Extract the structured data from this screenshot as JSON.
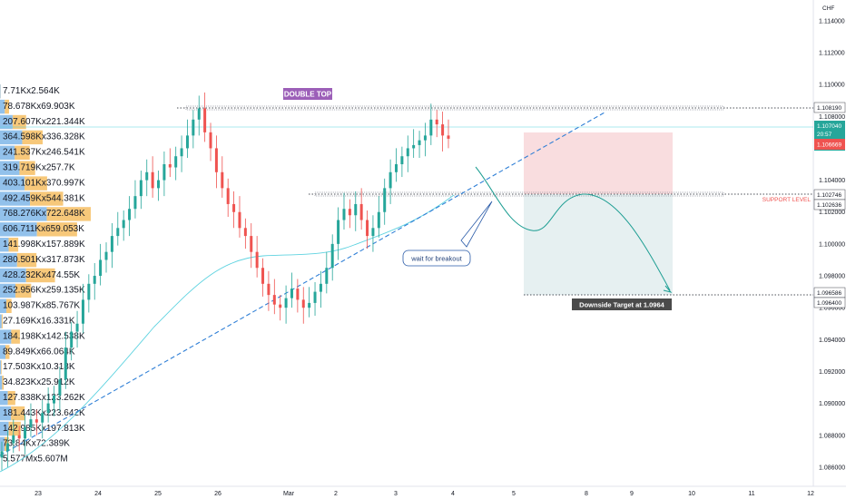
{
  "chart_data": {
    "type": "candlestick",
    "currency": "CHF",
    "y_axis": {
      "ticks": [
        "1.114000",
        "1.112000",
        "1.110000",
        "1.108000",
        "1.106000",
        "1.104000",
        "1.102000",
        "1.100000",
        "1.098000",
        "1.096000",
        "1.094000",
        "1.092000",
        "1.090000",
        "1.088000",
        "1.086000"
      ],
      "ylim": [
        1.0848,
        1.1153
      ]
    },
    "x_axis": {
      "ticks": [
        "23",
        "24",
        "25",
        "26",
        "Mar",
        "2",
        "3",
        "4",
        "5",
        "8",
        "9",
        "10",
        "11",
        "12"
      ]
    },
    "price_labels": {
      "resistance": "1.108190",
      "current": "1.107040",
      "countdown": "20:57",
      "last_red": "1.106669",
      "support_upper": "1.102746",
      "support_lower": "1.102636",
      "target_upper": "1.096586",
      "target_lower": "1.096400"
    },
    "annotations": {
      "double_top": "DOUBLE TOP",
      "support_level": "SUPPORT LEVEL",
      "wait_for_breakout": "wait for breakout",
      "downside_target": "Downside Target at 1.0964"
    },
    "volume_profile": [
      {
        "label": "7.71Kx2.564K",
        "buy": 7.7,
        "sell": 2.6
      },
      {
        "label": "78.678Kx69.903K",
        "buy": 78.7,
        "sell": 69.9
      },
      {
        "label": "207.607Kx221.344K",
        "buy": 207.6,
        "sell": 221.3
      },
      {
        "label": "364.598Kx336.328K",
        "buy": 364.6,
        "sell": 336.3
      },
      {
        "label": "241.537Kx246.541K",
        "buy": 241.5,
        "sell": 246.5
      },
      {
        "label": "319.719Kx257.7K",
        "buy": 319.7,
        "sell": 257.7
      },
      {
        "label": "403.101Kx370.997K",
        "buy": 403.1,
        "sell": 371.0
      },
      {
        "label": "492.459Kx544.381K",
        "buy": 492.5,
        "sell": 544.4
      },
      {
        "label": "768.276Kx722.648K",
        "buy": 768.3,
        "sell": 722.6
      },
      {
        "label": "606.711Kx659.053K",
        "buy": 606.7,
        "sell": 659.1
      },
      {
        "label": "141.998Kx157.889K",
        "buy": 142.0,
        "sell": 157.9
      },
      {
        "label": "280.501Kx317.873K",
        "buy": 280.5,
        "sell": 317.9
      },
      {
        "label": "428.232Kx474.55K",
        "buy": 428.2,
        "sell": 474.6
      },
      {
        "label": "252.956Kx259.135K",
        "buy": 253.0,
        "sell": 259.1
      },
      {
        "label": "103.987Kx85.767K",
        "buy": 104.0,
        "sell": 85.8
      },
      {
        "label": "27.169Kx16.331K",
        "buy": 27.2,
        "sell": 16.3
      },
      {
        "label": "184.198Kx142.538K",
        "buy": 184.2,
        "sell": 142.5
      },
      {
        "label": "89.849Kx66.064K",
        "buy": 89.8,
        "sell": 66.1
      },
      {
        "label": "17.503Kx10.313K",
        "buy": 17.5,
        "sell": 10.3
      },
      {
        "label": "34.823Kx25.912K",
        "buy": 34.8,
        "sell": 25.9
      },
      {
        "label": "127.838Kx123.262K",
        "buy": 127.8,
        "sell": 123.3
      },
      {
        "label": "181.443Kx223.642K",
        "buy": 181.4,
        "sell": 223.6
      },
      {
        "label": "142.985Kx197.813K",
        "buy": 143.0,
        "sell": 197.8
      },
      {
        "label": "73.84Kx72.389K",
        "buy": 73.8,
        "sell": 72.4
      },
      {
        "label": "5.577Mx5.607M",
        "buy": 5577,
        "sell": 5607
      }
    ],
    "close_series": [
      1.087,
      1.0875,
      1.088,
      1.0878,
      1.0885,
      1.089,
      1.0888,
      1.0894,
      1.09,
      1.0905,
      1.0915,
      1.0935,
      1.0945,
      1.095,
      1.0965,
      1.0975,
      1.098,
      1.099,
      1.0995,
      1.1005,
      1.101,
      1.1015,
      1.1022,
      1.103,
      1.104,
      1.1045,
      1.1035,
      1.104,
      1.105,
      1.1048,
      1.1055,
      1.106,
      1.1068,
      1.1078,
      1.1085,
      1.107,
      1.106,
      1.1045,
      1.1035,
      1.1025,
      1.102,
      1.101,
      1.1005,
      1.0995,
      1.0985,
      1.0975,
      1.0968,
      1.0962,
      1.096,
      1.0966,
      1.0972,
      1.0965,
      1.096,
      1.0963,
      1.097,
      1.0975,
      1.0985,
      1.1,
      1.1015,
      1.1022,
      1.1018,
      1.1025,
      1.1015,
      1.1005,
      1.101,
      1.102,
      1.1035,
      1.1045,
      1.105,
      1.1055,
      1.106,
      1.1062,
      1.1065,
      1.1068,
      1.1078,
      1.1075,
      1.1068,
      1.1066
    ],
    "up_color": "#26a69a",
    "down_color": "#ef5350"
  }
}
